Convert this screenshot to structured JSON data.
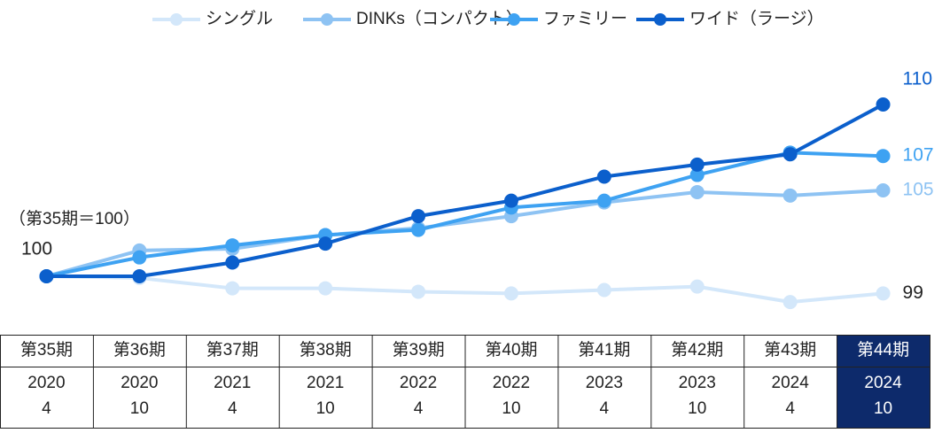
{
  "chart_data": {
    "type": "line",
    "annotation": "（第35期＝100）",
    "categories": [
      "第35期",
      "第36期",
      "第37期",
      "第38期",
      "第39期",
      "第40期",
      "第41期",
      "第42期",
      "第43期",
      "第44期"
    ],
    "category_years": [
      "2020",
      "2020",
      "2021",
      "2021",
      "2022",
      "2022",
      "2023",
      "2023",
      "2024",
      "2024"
    ],
    "category_months": [
      "4",
      "10",
      "4",
      "10",
      "4",
      "10",
      "4",
      "10",
      "4",
      "10"
    ],
    "highlight": 9,
    "highlight_color": "#0d2a6b",
    "ylim": [
      98,
      111
    ],
    "series": [
      {
        "name": "シングル",
        "color": "#d3e7fa",
        "label_color": "#222222",
        "values": [
          100,
          99.9,
          99.3,
          99.3,
          99.1,
          99,
          99.2,
          99.4,
          98.5,
          99
        ]
      },
      {
        "name": "DINKs（コンパクト）",
        "color": "#8ec3f3",
        "label_color": "#8ec3f3",
        "values": [
          100,
          101.5,
          101.6,
          102.4,
          102.8,
          103.5,
          104.3,
          104.9,
          104.7,
          105
        ]
      },
      {
        "name": "ファミリー",
        "color": "#3ea2f2",
        "label_color": "#3ea2f2",
        "values": [
          100,
          101.1,
          101.8,
          102.4,
          102.7,
          104,
          104.4,
          105.9,
          107.2,
          107
        ]
      },
      {
        "name": "ワイド（ラージ）",
        "color": "#0b5fcc",
        "label_color": "#0b5fcc",
        "values": [
          100,
          100,
          100.8,
          101.9,
          103.5,
          104.4,
          105.8,
          106.5,
          107.1,
          110
        ]
      }
    ]
  }
}
